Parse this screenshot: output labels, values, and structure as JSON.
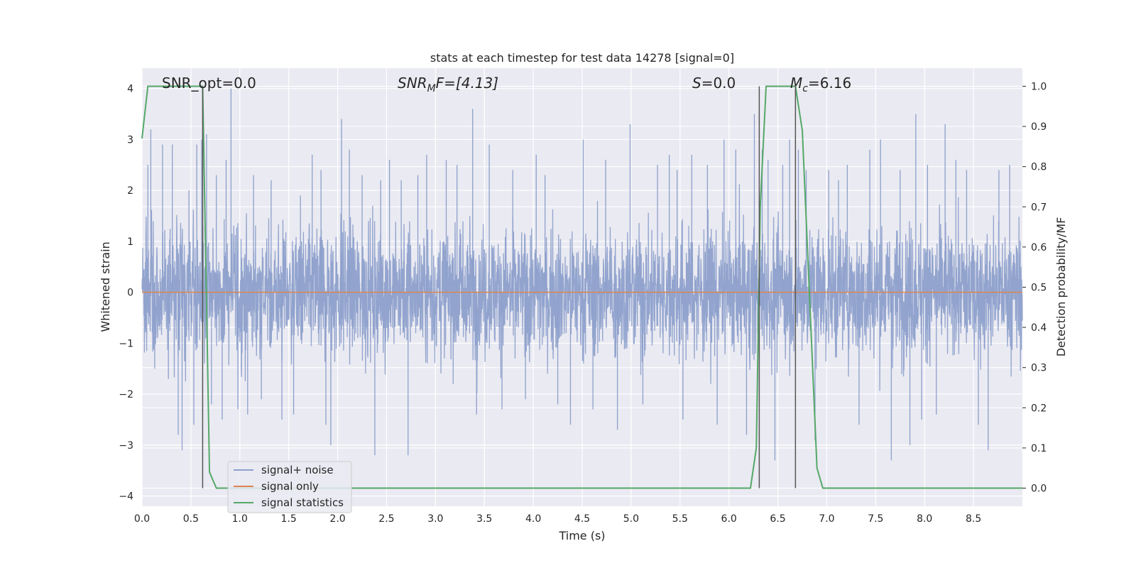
{
  "chart_data": {
    "type": "line",
    "title": "stats at each timestep for test data 14278 [signal=0]",
    "xlabel": "Time (s)",
    "ylabel": "Whitened strain",
    "y2label": "Detection probability/MF",
    "xlim": [
      0,
      9.0
    ],
    "ylim": [
      -4.2,
      4.4
    ],
    "y2lim": [
      -0.045,
      1.045
    ],
    "xticks": [
      0.0,
      0.5,
      1.0,
      1.5,
      2.0,
      2.5,
      3.0,
      3.5,
      4.0,
      4.5,
      5.0,
      5.5,
      6.0,
      6.5,
      7.0,
      7.5,
      8.0,
      8.5
    ],
    "xtick_labels": [
      "0.0",
      "0.5",
      "1.0",
      "1.5",
      "2.0",
      "2.5",
      "3.0",
      "3.5",
      "4.0",
      "4.5",
      "5.0",
      "5.5",
      "6.0",
      "6.5",
      "7.0",
      "7.5",
      "8.0",
      "8.5"
    ],
    "yticks": [
      4,
      3,
      2,
      1,
      0,
      -1,
      -2,
      -3,
      -4
    ],
    "ytick_labels": [
      "4",
      "3",
      "2",
      "1",
      "0",
      "−1",
      "−2",
      "−3",
      "−4"
    ],
    "y2ticks": [
      1.0,
      0.9,
      0.8,
      0.7,
      0.6,
      0.5,
      0.4,
      0.3,
      0.2,
      0.1,
      0.0
    ],
    "y2tick_labels": [
      "1.0",
      "0.9",
      "0.8",
      "0.7",
      "0.6",
      "0.5",
      "0.4",
      "0.3",
      "0.2",
      "0.1",
      "0.0"
    ],
    "grid": true,
    "legend_position": "lower-left",
    "annotations": {
      "snr_opt": "SNR_opt=0.0",
      "snr_mf_main": "SNR",
      "snr_mf_sub": "M",
      "snr_mf_rest": "F=[4.13]",
      "s_main": "S",
      "s_rest": "=0.0",
      "mc_main": "M",
      "mc_sub": "c",
      "mc_rest": "=6.16"
    },
    "vertical_lines_x": [
      0.62,
      6.31,
      6.68
    ],
    "series": [
      {
        "name": "signal+ noise",
        "color": "#8da0cb",
        "axis": "left",
        "noise_sigma": 1.0,
        "peaks": [
          [
            0.06,
            2.5
          ],
          [
            0.09,
            3.2
          ],
          [
            0.13,
            -1.5
          ],
          [
            0.21,
            2.9
          ],
          [
            0.27,
            -1.7
          ],
          [
            0.31,
            2.9
          ],
          [
            0.37,
            -2.8
          ],
          [
            0.41,
            -3.1
          ],
          [
            0.48,
            2.0
          ],
          [
            0.53,
            -2.6
          ],
          [
            0.56,
            2.9
          ],
          [
            0.61,
            3.0
          ],
          [
            0.66,
            3.1
          ],
          [
            0.71,
            -2.2
          ],
          [
            0.76,
            2.3
          ],
          [
            0.82,
            -2.5
          ],
          [
            0.86,
            2.6
          ],
          [
            0.91,
            4.0
          ],
          [
            0.98,
            -2.3
          ],
          [
            1.08,
            -2.4
          ],
          [
            1.14,
            2.3
          ],
          [
            1.22,
            -2.1
          ],
          [
            1.32,
            2.2
          ],
          [
            1.43,
            -2.5
          ],
          [
            1.55,
            -2.4
          ],
          [
            1.62,
            1.9
          ],
          [
            1.74,
            2.7
          ],
          [
            1.83,
            2.4
          ],
          [
            1.88,
            -2.6
          ],
          [
            1.93,
            -3.0
          ],
          [
            2.04,
            3.4
          ],
          [
            2.12,
            2.8
          ],
          [
            2.25,
            2.3
          ],
          [
            2.38,
            -3.2
          ],
          [
            2.44,
            2.2
          ],
          [
            2.53,
            2.6
          ],
          [
            2.65,
            2.2
          ],
          [
            2.72,
            -3.2
          ],
          [
            2.82,
            2.3
          ],
          [
            2.91,
            2.7
          ],
          [
            3.11,
            2.6
          ],
          [
            3.22,
            2.5
          ],
          [
            3.38,
            3.6
          ],
          [
            3.42,
            -2.4
          ],
          [
            3.55,
            2.9
          ],
          [
            3.68,
            -2.3
          ],
          [
            3.79,
            2.4
          ],
          [
            3.92,
            -2.1
          ],
          [
            4.03,
            2.7
          ],
          [
            4.12,
            2.3
          ],
          [
            4.25,
            -2.2
          ],
          [
            4.38,
            -2.6
          ],
          [
            4.51,
            3.0
          ],
          [
            4.61,
            -2.3
          ],
          [
            4.74,
            2.6
          ],
          [
            4.86,
            -2.7
          ],
          [
            4.99,
            3.3
          ],
          [
            5.12,
            -2.2
          ],
          [
            5.27,
            2.5
          ],
          [
            5.39,
            2.7
          ],
          [
            5.47,
            2.4
          ],
          [
            5.53,
            -2.5
          ],
          [
            5.62,
            2.7
          ],
          [
            5.78,
            2.5
          ],
          [
            5.88,
            -2.6
          ],
          [
            5.95,
            3.0
          ],
          [
            6.07,
            2.8
          ],
          [
            6.18,
            -2.8
          ],
          [
            6.26,
            3.5
          ],
          [
            6.34,
            2.8
          ],
          [
            6.4,
            2.6
          ],
          [
            6.47,
            -3.3
          ],
          [
            6.55,
            2.5
          ],
          [
            6.62,
            3.0
          ],
          [
            6.71,
            2.8
          ],
          [
            6.79,
            2.4
          ],
          [
            6.88,
            -2.9
          ],
          [
            7.02,
            2.4
          ],
          [
            7.12,
            2.2
          ],
          [
            7.21,
            2.5
          ],
          [
            7.33,
            -2.6
          ],
          [
            7.44,
            2.8
          ],
          [
            7.55,
            3.0
          ],
          [
            7.66,
            -3.3
          ],
          [
            7.75,
            2.4
          ],
          [
            7.85,
            -3.0
          ],
          [
            7.91,
            3.5
          ],
          [
            7.97,
            -2.5
          ],
          [
            8.03,
            2.5
          ],
          [
            8.12,
            -2.4
          ],
          [
            8.21,
            3.3
          ],
          [
            8.32,
            2.6
          ],
          [
            8.43,
            2.4
          ],
          [
            8.55,
            -2.6
          ],
          [
            8.65,
            -3.1
          ],
          [
            8.76,
            2.4
          ],
          [
            8.87,
            2.5
          ]
        ]
      },
      {
        "name": "signal only",
        "color": "#dd8452",
        "axis": "left",
        "x": [
          0,
          9.0
        ],
        "y": [
          0,
          0
        ]
      },
      {
        "name": "signal statistics",
        "color": "#55a868",
        "axis": "right",
        "x": [
          0.0,
          0.06,
          0.12,
          0.55,
          0.62,
          0.69,
          0.76,
          0.85,
          6.22,
          6.28,
          6.32,
          6.38,
          6.68,
          6.75,
          6.82,
          6.9,
          6.96,
          7.5,
          9.0
        ],
        "y": [
          0.87,
          1.0,
          1.0,
          1.0,
          1.0,
          0.04,
          0.0,
          0.0,
          0.0,
          0.1,
          0.7,
          1.0,
          1.0,
          0.89,
          0.5,
          0.05,
          0.0,
          0.0,
          0.0
        ]
      }
    ]
  }
}
